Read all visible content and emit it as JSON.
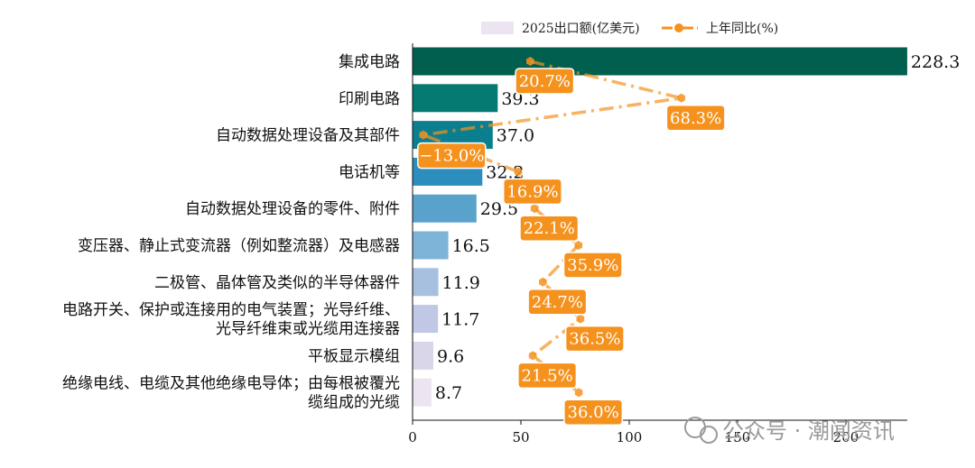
{
  "chart_data": {
    "type": "bar",
    "orientation": "horizontal",
    "categories": [
      [
        "集成电路"
      ],
      [
        "印刷电路"
      ],
      [
        "自动数据处理设备及其部件"
      ],
      [
        "电话机等"
      ],
      [
        "自动数据处理设备的零件、附件"
      ],
      [
        "变压器、静止式变流器（例如整流器）及电感器"
      ],
      [
        "二极管、晶体管及类似的半导体器件"
      ],
      [
        "电路开关、保护或连接用的电气装置；光导纤维、",
        "光导纤维束或光缆用连接器"
      ],
      [
        "平板显示模组"
      ],
      [
        "绝缘电线、电缆及其他绝缘电导体；由每根被覆光",
        "缆组成的光缆"
      ]
    ],
    "series": [
      {
        "name": "2025出口额(亿美元)",
        "values": [
          228.3,
          39.3,
          37.0,
          32.2,
          29.5,
          16.5,
          11.9,
          11.7,
          9.6,
          8.7
        ],
        "value_labels": [
          "228.3",
          "39.3",
          "37.0",
          "32.2",
          "29.5",
          "16.5",
          "11.9",
          "11.7",
          "9.6",
          "8.7"
        ],
        "colors": [
          "#005f4e",
          "#047a72",
          "#0b7f8f",
          "#2c8ebd",
          "#58a2cc",
          "#7eb4d8",
          "#a8c0e0",
          "#c1c8e6",
          "#d9d6ea",
          "#ece4f0"
        ]
      },
      {
        "name": "上年同比(%)",
        "type": "line",
        "values": [
          20.7,
          68.3,
          -13.0,
          16.9,
          22.1,
          35.9,
          24.7,
          36.5,
          21.5,
          36.0
        ],
        "value_labels": [
          "20.7%",
          "68.3%",
          "−13.0%",
          "16.9%",
          "22.1%",
          "35.9%",
          "24.7%",
          "36.5%",
          "21.5%",
          "36.0%"
        ],
        "color": "#f5921e"
      }
    ],
    "x_axis": {
      "ticks": [
        "0",
        "50",
        "100",
        "150",
        "200"
      ],
      "tick_values": [
        0,
        50,
        100,
        150,
        200
      ],
      "range": [
        0,
        228.3
      ]
    },
    "legend": {
      "placement": "top"
    },
    "grid": false
  },
  "watermark": {
    "text": "公众号 · 潮闻资讯"
  }
}
